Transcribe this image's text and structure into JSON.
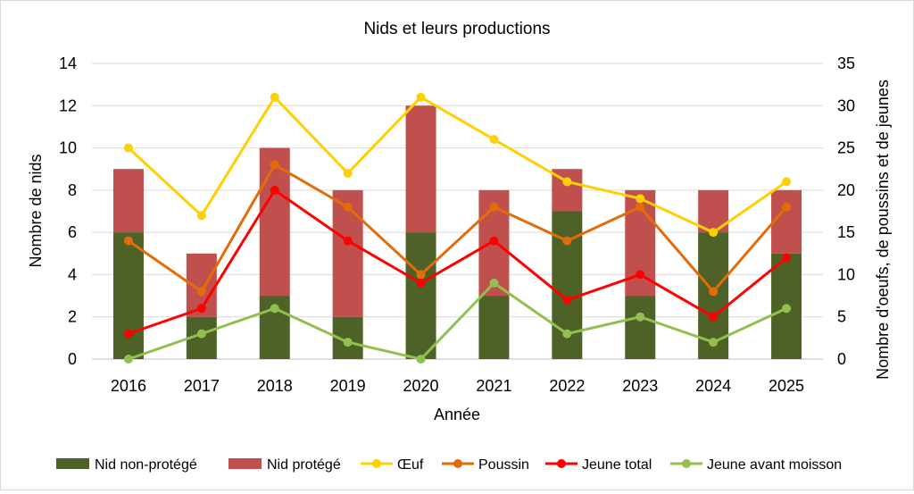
{
  "chart_data": {
    "type": "bar",
    "title": "Nids et leurs productions",
    "xlabel": "Année",
    "ylabel": "Nombre de nids",
    "y2label": "Nombre d'oeufs, de poussins et de jeunes",
    "ylim": [
      0,
      14
    ],
    "y2lim": [
      0,
      35
    ],
    "yticks": [
      "0",
      "2",
      "4",
      "6",
      "8",
      "10",
      "12",
      "14"
    ],
    "y2ticks": [
      "0",
      "5",
      "10",
      "15",
      "20",
      "25",
      "30",
      "35"
    ],
    "grid": true,
    "legend_position": "bottom",
    "categories": [
      "2016",
      "2017",
      "2018",
      "2019",
      "2020",
      "2021",
      "2022",
      "2023",
      "2024",
      "2025"
    ],
    "bar_series": [
      {
        "name": "Nid non-protégé",
        "color": "#4e6228",
        "values": [
          6,
          2,
          3,
          2,
          6,
          3,
          7,
          3,
          6,
          5
        ]
      },
      {
        "name": "Nid protégé",
        "color": "#c0504d",
        "values": [
          3,
          3,
          7,
          6,
          6,
          5,
          2,
          5,
          2,
          3
        ]
      }
    ],
    "line_series": [
      {
        "name": "Œuf",
        "color": "#ffd000",
        "axis": "right",
        "values": [
          25,
          17,
          31,
          22,
          31,
          26,
          21,
          19,
          15,
          21
        ]
      },
      {
        "name": "Poussin",
        "color": "#e36c0a",
        "axis": "right",
        "values": [
          14,
          8,
          23,
          18,
          10,
          18,
          14,
          18,
          8,
          18
        ]
      },
      {
        "name": "Jeune total",
        "color": "#ff0000",
        "axis": "right",
        "values": [
          3,
          6,
          20,
          14,
          9,
          14,
          7,
          10,
          5,
          12
        ]
      },
      {
        "name": "Jeune avant moisson",
        "color": "#92c050",
        "axis": "right",
        "values": [
          0,
          3,
          6,
          2,
          0,
          9,
          3,
          5,
          2,
          6
        ]
      }
    ]
  }
}
